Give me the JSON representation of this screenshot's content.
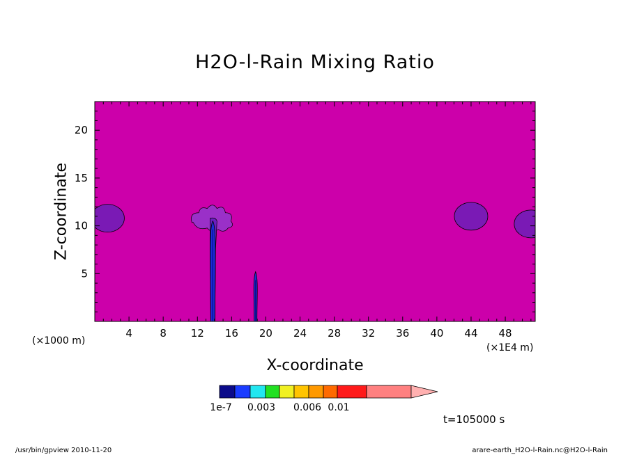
{
  "chart_data": {
    "type": "heatmap",
    "title": "H2O-l-Rain Mixing Ratio",
    "xlabel": "X-coordinate",
    "ylabel": "Z-coordinate",
    "x_unit": "(×1000 m)",
    "x_scale_note": "(×1E4 m)",
    "xlim": [
      0,
      51.5
    ],
    "ylim": [
      0,
      23
    ],
    "x_ticks": [
      4,
      8,
      12,
      16,
      20,
      24,
      28,
      32,
      36,
      40,
      44,
      48
    ],
    "y_ticks": [
      5,
      10,
      15,
      20
    ],
    "time_label": "t=105000 s",
    "background_color": "#cc00aa",
    "colorbar": {
      "colors": [
        "#0b0b8a",
        "#1a3cff",
        "#22e6f0",
        "#22e022",
        "#f0f022",
        "#ffc400",
        "#ff9900",
        "#ff6a00",
        "#ff1a1a",
        "#ff8080",
        "#ffb0b0"
      ],
      "labels": [
        "1e-7",
        "0.003",
        "0.006",
        "0.01"
      ]
    },
    "features": [
      {
        "type": "purple-blob",
        "x_center": 1.5,
        "z_center": 10.8,
        "color": "#7a1ab5"
      },
      {
        "type": "purple-blob",
        "x_center": 44.0,
        "z_center": 11.0,
        "color": "#7a1ab5"
      },
      {
        "type": "purple-blob",
        "x_center": 51.0,
        "z_center": 10.2,
        "color": "#7a1ab5"
      },
      {
        "type": "rain-column",
        "x_center": 13.8,
        "z_top": 10.5,
        "z_bottom": 0,
        "color": "#1a2cd6"
      },
      {
        "type": "rain-column",
        "x_center": 18.8,
        "z_top": 5.2,
        "z_bottom": 0,
        "color": "#1a2cd6"
      }
    ]
  },
  "footer": {
    "left": "/usr/bin/gpview   2010-11-20",
    "right": "arare-earth_H2O-l-Rain.nc@H2O-l-Rain"
  }
}
